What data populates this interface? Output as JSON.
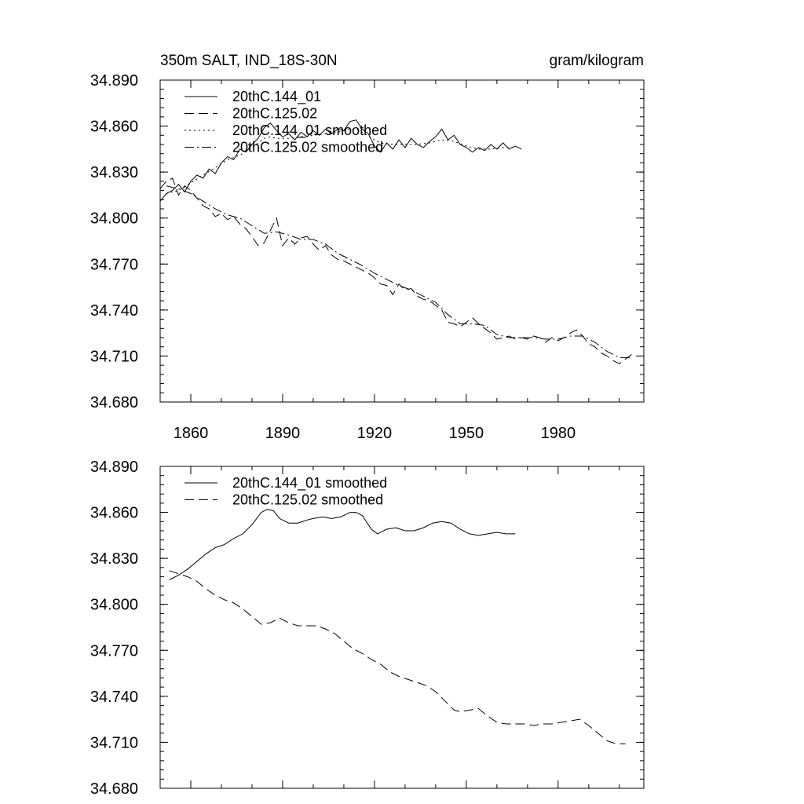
{
  "header": {
    "left_title": "350m SALT, IND_18S-30N",
    "right_title": "gram/kilogram"
  },
  "chart_data": [
    {
      "type": "line",
      "xlim": [
        1850,
        2008
      ],
      "ylim": [
        34.68,
        34.89
      ],
      "yticks": [
        "34.890",
        "34.860",
        "34.830",
        "34.800",
        "34.770",
        "34.740",
        "34.710",
        "34.680"
      ],
      "xticks": [
        "1860",
        "1890",
        "1920",
        "1950",
        "1980"
      ],
      "legend_position": "top-left",
      "series": [
        {
          "name": "20thC.144_01",
          "style": "solid",
          "x": [
            1850,
            1852,
            1854,
            1856,
            1858,
            1860,
            1862,
            1864,
            1866,
            1868,
            1870,
            1872,
            1874,
            1876,
            1878,
            1880,
            1882,
            1884,
            1886,
            1888,
            1890,
            1892,
            1894,
            1896,
            1898,
            1900,
            1902,
            1904,
            1906,
            1908,
            1910,
            1912,
            1914,
            1916,
            1918,
            1920,
            1922,
            1924,
            1926,
            1928,
            1930,
            1932,
            1934,
            1936,
            1938,
            1940,
            1942,
            1944,
            1946,
            1948,
            1950,
            1952,
            1954,
            1956,
            1958,
            1960,
            1962,
            1964,
            1966,
            1968
          ],
          "y": [
            34.811,
            34.816,
            34.818,
            34.822,
            34.817,
            34.824,
            34.828,
            34.826,
            34.832,
            34.829,
            34.836,
            34.84,
            34.838,
            34.845,
            34.843,
            34.848,
            34.852,
            34.859,
            34.862,
            34.857,
            34.853,
            34.855,
            34.851,
            34.856,
            34.853,
            34.857,
            34.854,
            34.858,
            34.855,
            34.858,
            34.857,
            34.863,
            34.864,
            34.858,
            34.855,
            34.847,
            34.843,
            34.849,
            34.845,
            34.851,
            34.846,
            34.852,
            34.848,
            34.846,
            34.85,
            34.853,
            34.858,
            34.851,
            34.854,
            34.848,
            34.846,
            34.843,
            34.846,
            34.844,
            34.848,
            34.845,
            34.849,
            34.845,
            34.847,
            34.845
          ]
        },
        {
          "name": "20thC.125.02",
          "style": "dashed",
          "x": [
            1850,
            1852,
            1854,
            1856,
            1858,
            1860,
            1862,
            1864,
            1866,
            1868,
            1870,
            1872,
            1874,
            1876,
            1878,
            1880,
            1882,
            1884,
            1886,
            1888,
            1890,
            1892,
            1894,
            1896,
            1898,
            1900,
            1902,
            1904,
            1906,
            1908,
            1910,
            1912,
            1914,
            1916,
            1918,
            1920,
            1922,
            1924,
            1926,
            1928,
            1930,
            1932,
            1934,
            1936,
            1938,
            1940,
            1942,
            1944,
            1946,
            1948,
            1950,
            1952,
            1954,
            1956,
            1958,
            1960,
            1962,
            1964,
            1966,
            1968,
            1970,
            1972,
            1974,
            1976,
            1978,
            1980,
            1982,
            1984,
            1986,
            1988,
            1990,
            1992,
            1994,
            1996,
            1998,
            2000,
            2002,
            2004
          ],
          "y": [
            34.819,
            34.824,
            34.826,
            34.815,
            34.821,
            34.818,
            34.813,
            34.808,
            34.806,
            34.801,
            34.803,
            34.799,
            34.801,
            34.796,
            34.793,
            34.788,
            34.782,
            34.784,
            34.792,
            34.8,
            34.782,
            34.787,
            34.783,
            34.787,
            34.788,
            34.783,
            34.779,
            34.782,
            34.776,
            34.773,
            34.772,
            34.77,
            34.768,
            34.766,
            34.764,
            34.761,
            34.757,
            34.756,
            34.75,
            34.757,
            34.753,
            34.754,
            34.749,
            34.747,
            34.746,
            34.743,
            34.74,
            34.732,
            34.731,
            34.729,
            34.732,
            34.735,
            34.731,
            34.728,
            34.725,
            34.721,
            34.722,
            34.723,
            34.721,
            34.722,
            34.721,
            34.723,
            34.722,
            34.719,
            34.722,
            34.72,
            34.722,
            34.725,
            34.727,
            34.723,
            34.718,
            34.716,
            34.712,
            34.71,
            34.707,
            34.705,
            34.708,
            34.711
          ]
        },
        {
          "name": "20thC.144_01 smoothed",
          "style": "dotted",
          "x": [
            1852,
            1856,
            1860,
            1864,
            1868,
            1872,
            1876,
            1880,
            1884,
            1886,
            1888,
            1892,
            1896,
            1900,
            1904,
            1908,
            1912,
            1914,
            1916,
            1920,
            1922,
            1926,
            1930,
            1934,
            1938,
            1942,
            1946,
            1950,
            1954,
            1958,
            1962,
            1966
          ],
          "y": [
            34.816,
            34.818,
            34.823,
            34.828,
            34.833,
            34.838,
            34.841,
            34.846,
            34.852,
            34.853,
            34.852,
            34.852,
            34.853,
            34.854,
            34.855,
            34.856,
            34.858,
            34.858,
            34.856,
            34.851,
            34.849,
            34.848,
            34.848,
            34.848,
            34.849,
            34.851,
            34.85,
            34.847,
            34.845,
            34.845,
            34.846,
            34.846
          ]
        },
        {
          "name": "20thC.125.02 smoothed",
          "style": "dashdot",
          "x": [
            1852,
            1856,
            1860,
            1864,
            1868,
            1872,
            1876,
            1880,
            1884,
            1888,
            1892,
            1896,
            1900,
            1904,
            1908,
            1912,
            1916,
            1920,
            1924,
            1928,
            1932,
            1936,
            1940,
            1944,
            1948,
            1952,
            1956,
            1960,
            1964,
            1968,
            1972,
            1976,
            1980,
            1984,
            1988,
            1992,
            1996,
            2000,
            2004
          ],
          "y": [
            34.821,
            34.819,
            34.816,
            34.811,
            34.806,
            34.802,
            34.8,
            34.795,
            34.79,
            34.791,
            34.789,
            34.786,
            34.786,
            34.783,
            34.777,
            34.773,
            34.769,
            34.764,
            34.76,
            34.756,
            34.753,
            34.749,
            34.745,
            34.737,
            34.731,
            34.731,
            34.73,
            34.724,
            34.722,
            34.722,
            34.722,
            34.721,
            34.721,
            34.723,
            34.723,
            34.719,
            34.713,
            34.709,
            34.709
          ]
        }
      ]
    },
    {
      "type": "line",
      "xlim": [
        1850,
        2008
      ],
      "ylim": [
        34.68,
        34.89
      ],
      "yticks": [
        "34.890",
        "34.860",
        "34.830",
        "34.800",
        "34.770",
        "34.740",
        "34.710",
        "34.680"
      ],
      "legend_position": "top-left",
      "series": [
        {
          "name": "20thC.144_01 smoothed",
          "style": "solid",
          "x": [
            1853,
            1856,
            1859,
            1862,
            1865,
            1868,
            1871,
            1874,
            1877,
            1880,
            1883,
            1885,
            1887,
            1889,
            1892,
            1895,
            1898,
            1900,
            1903,
            1906,
            1909,
            1912,
            1914,
            1916,
            1919,
            1921,
            1924,
            1927,
            1930,
            1933,
            1936,
            1939,
            1942,
            1945,
            1948,
            1951,
            1954,
            1957,
            1960,
            1963,
            1966
          ],
          "y": [
            34.816,
            34.819,
            34.823,
            34.828,
            34.833,
            34.837,
            34.839,
            34.843,
            34.846,
            34.852,
            34.86,
            34.862,
            34.861,
            34.856,
            34.853,
            34.853,
            34.855,
            34.856,
            34.857,
            34.856,
            34.857,
            34.86,
            34.86,
            34.858,
            34.849,
            34.846,
            34.849,
            34.85,
            34.848,
            34.848,
            34.85,
            34.853,
            34.854,
            34.853,
            34.849,
            34.846,
            34.845,
            34.846,
            34.847,
            34.846,
            34.846
          ]
        },
        {
          "name": "20thC.125.02 smoothed",
          "style": "dashed",
          "x": [
            1853,
            1856,
            1859,
            1862,
            1865,
            1868,
            1871,
            1874,
            1877,
            1880,
            1883,
            1886,
            1889,
            1892,
            1895,
            1898,
            1901,
            1904,
            1907,
            1910,
            1913,
            1916,
            1919,
            1922,
            1925,
            1928,
            1931,
            1934,
            1937,
            1940,
            1943,
            1946,
            1948,
            1951,
            1954,
            1957,
            1960,
            1963,
            1966,
            1969,
            1972,
            1975,
            1978,
            1981,
            1984,
            1987,
            1990,
            1993,
            1996,
            1999,
            2002
          ],
          "y": [
            34.822,
            34.82,
            34.818,
            34.815,
            34.81,
            34.806,
            34.803,
            34.801,
            34.797,
            34.792,
            34.787,
            34.788,
            34.791,
            34.788,
            34.786,
            34.786,
            34.786,
            34.784,
            34.781,
            34.776,
            34.771,
            34.768,
            34.764,
            34.761,
            34.756,
            34.753,
            34.751,
            34.749,
            34.747,
            34.743,
            34.737,
            34.731,
            34.73,
            34.731,
            34.732,
            34.727,
            34.723,
            34.722,
            34.722,
            34.722,
            34.721,
            34.722,
            34.722,
            34.723,
            34.724,
            34.725,
            34.721,
            34.716,
            34.711,
            34.709,
            34.709
          ]
        }
      ]
    }
  ]
}
